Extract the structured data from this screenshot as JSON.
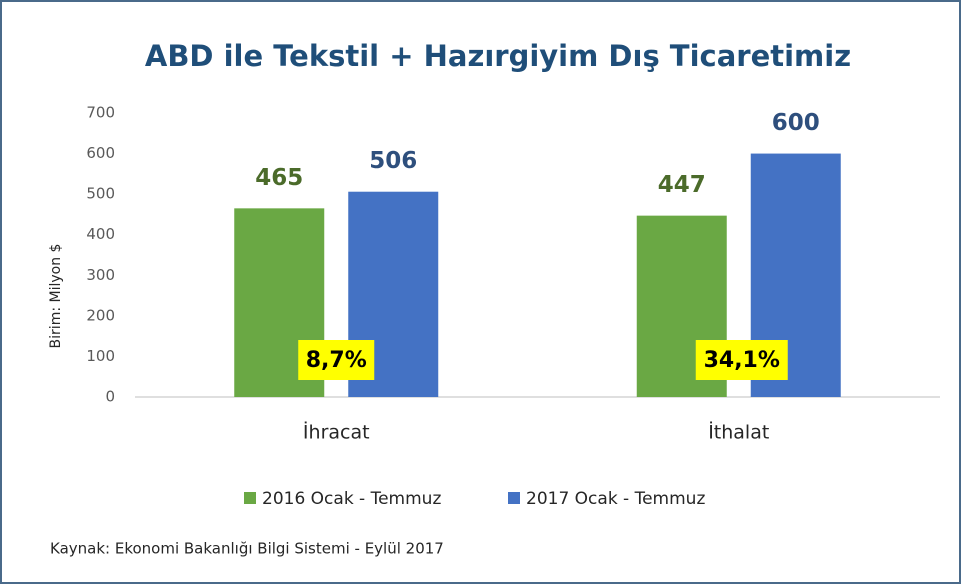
{
  "chart_data": {
    "type": "bar",
    "title": "ABD ile Tekstil + Hazırgiyim  Dış Ticaretimiz",
    "y_label": "Birim: Milyon $",
    "categories": [
      "İhracat",
      "İthalat"
    ],
    "series": [
      {
        "name": "2016 Ocak - Temmuz",
        "color": "#6aa844",
        "label_color": "#4b6b2a",
        "values": [
          465,
          447
        ]
      },
      {
        "name": "2017 Ocak - Temmuz",
        "color": "#4472c4",
        "label_color": "#2e4f7d",
        "values": [
          506,
          600
        ]
      }
    ],
    "annotations": [
      "8,7%",
      "34,1%"
    ],
    "ylim": [
      0,
      700
    ],
    "yticks": [
      0,
      100,
      200,
      300,
      400,
      500,
      600,
      700
    ],
    "grid": false,
    "legend": "bottom",
    "source": "Kaynak: Ekonomi Bakanlığı Bilgi Sistemi - Eylül 2017"
  }
}
